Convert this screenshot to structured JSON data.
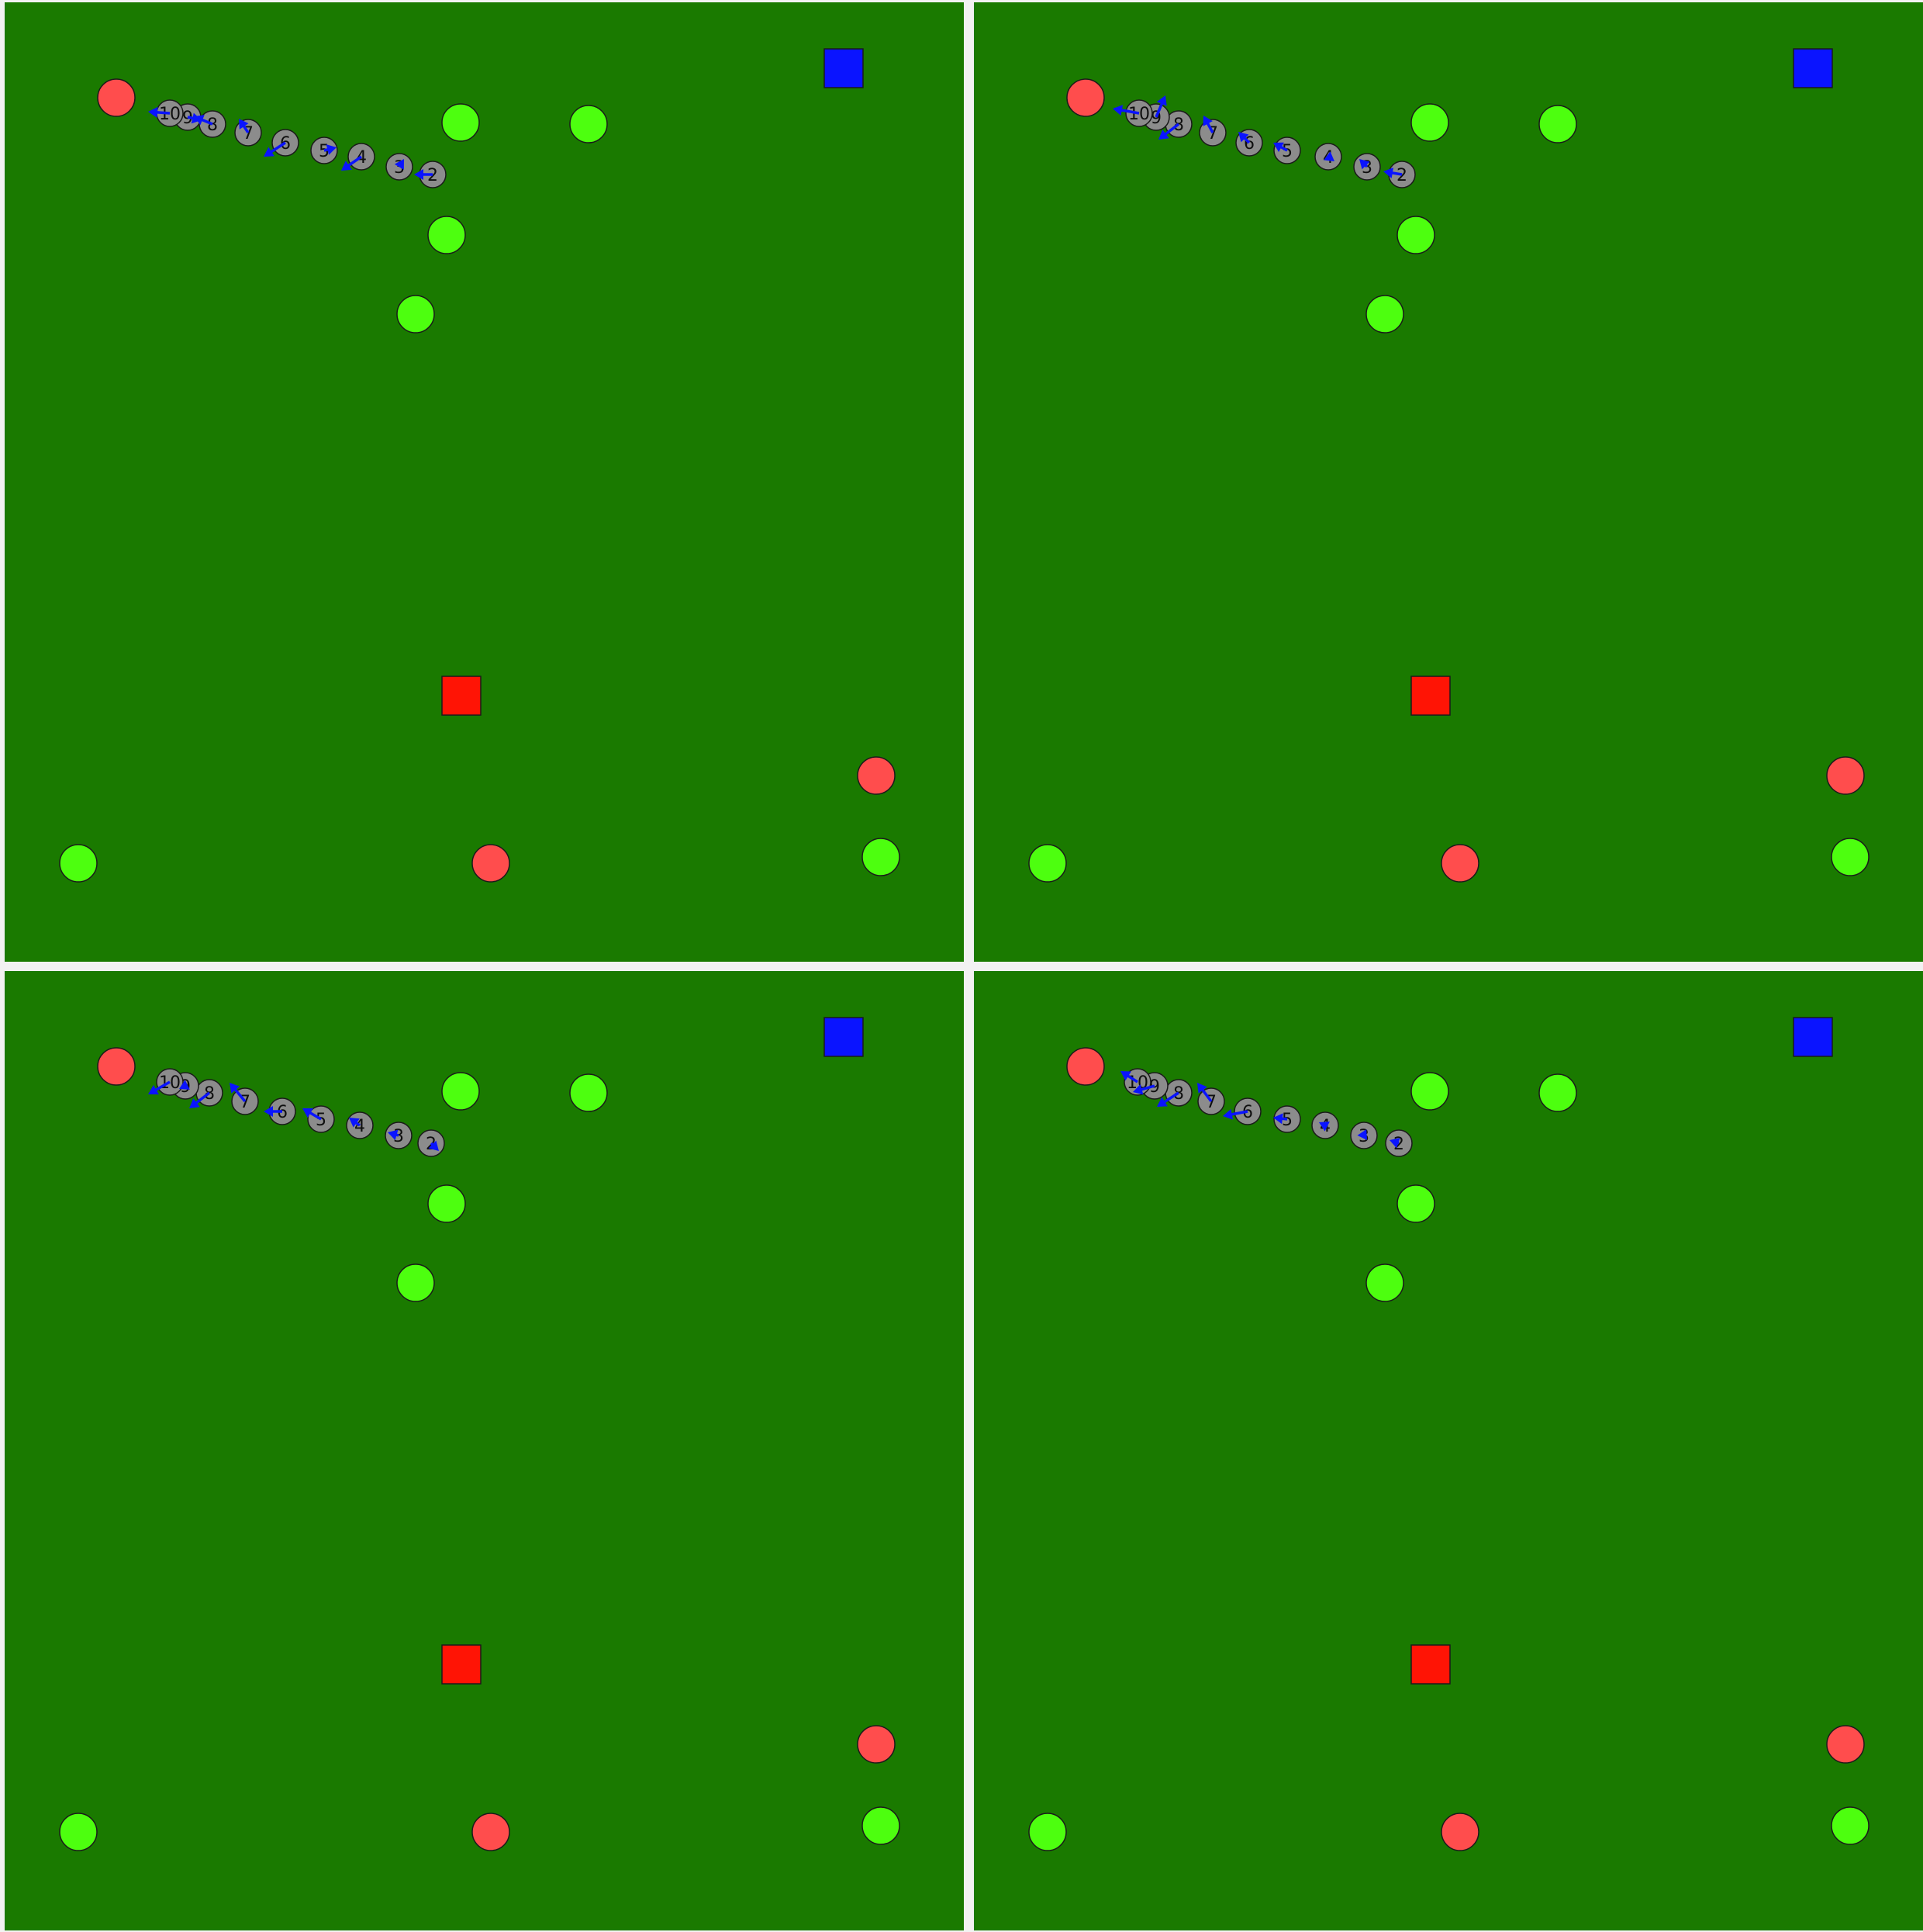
{
  "colors": {
    "field": "#1a7a00",
    "border": "#f2f2f2",
    "green_object": "#4dff0f",
    "red_object": "#ff4d4d",
    "red_square": "#ff1405",
    "blue_square": "#0a14ff",
    "trajectory_marker": "#8c8c8c",
    "action_arrow": "#0a14ff",
    "outline": "#1a1a1a"
  },
  "panels": [
    {
      "name": "panel-1",
      "step_labels": [
        "10",
        "9",
        "8",
        "7",
        "6",
        "5",
        "4",
        "3",
        "2"
      ]
    },
    {
      "name": "panel-2",
      "step_labels": [
        "10",
        "9",
        "8",
        "7",
        "6",
        "5",
        "4",
        "3",
        "2"
      ]
    },
    {
      "name": "panel-3",
      "step_labels": [
        "10",
        "9",
        "8",
        "7",
        "6",
        "5",
        "4",
        "3",
        "2"
      ]
    },
    {
      "name": "panel-4",
      "step_labels": [
        "10",
        "9",
        "8",
        "7",
        "6",
        "5",
        "4",
        "3",
        "2"
      ]
    }
  ]
}
